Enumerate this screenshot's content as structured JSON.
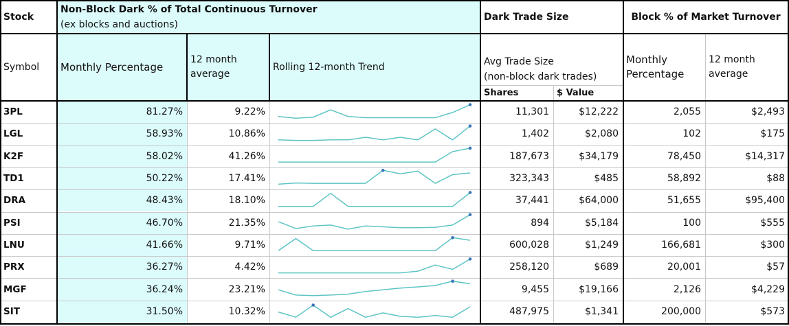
{
  "header": {
    "stock": "Stock",
    "dark_group_line1": "Non-Block Dark % of Total Continuous Turnover",
    "dark_group_line2": "(ex blocks and auctions)",
    "trade_size_group": "Dark Trade Size",
    "block_group": "Block % of Market Turnover",
    "symbol": "Symbol",
    "monthly_percentage": "Monthly Percentage",
    "avg12_line1": "12 month",
    "avg12_line2": "average",
    "rolling_trend": "Rolling 12-month Trend",
    "avg_trade_size_line1": "Avg Trade Size",
    "avg_trade_size_line2": "(non-block dark trades)",
    "shares": "Shares",
    "value": "$ Value",
    "block_monthly_line1": "Monthly",
    "block_monthly_line2": "Percentage",
    "block_avg_line1": "12 month",
    "block_avg_line2": "average"
  },
  "colors": {
    "accent_bg": "#dcfbfb",
    "trend_line": "#5ec4c4",
    "trend_marker": "#3b78b8"
  },
  "rows": [
    {
      "symbol": "3PL",
      "monthly": "81.27%",
      "avg12": "9.22%",
      "shares": "11,301",
      "value": "$12,222",
      "block_monthly": "2,055",
      "block_avg": "$2,493",
      "trend": [
        0.78,
        0.88,
        0.82,
        0.4,
        0.78,
        0.85,
        0.85,
        0.85,
        0.85,
        0.85,
        0.55,
        0.1
      ],
      "marker": 11
    },
    {
      "symbol": "LGL",
      "monthly": "58.93%",
      "avg12": "10.86%",
      "shares": "1,402",
      "value": "$2,080",
      "block_monthly": "102",
      "block_avg": "$175",
      "trend": [
        0.85,
        0.88,
        0.88,
        0.85,
        0.85,
        0.7,
        0.85,
        0.7,
        0.85,
        0.22,
        0.85,
        0.05
      ],
      "marker": 11
    },
    {
      "symbol": "K2F",
      "monthly": "58.02%",
      "avg12": "41.26%",
      "shares": "187,673",
      "value": "$34,179",
      "block_monthly": "78,450",
      "block_avg": "$14,317",
      "trend": [
        0.85,
        0.85,
        0.85,
        0.85,
        0.85,
        0.85,
        0.85,
        0.85,
        0.85,
        0.85,
        0.25,
        0.05
      ],
      "marker": 11
    },
    {
      "symbol": "TD1",
      "monthly": "50.22%",
      "avg12": "17.41%",
      "shares": "323,343",
      "value": "$485",
      "block_monthly": "58,892",
      "block_avg": "$88",
      "trend": [
        0.85,
        0.78,
        0.8,
        0.8,
        0.8,
        0.8,
        0.05,
        0.25,
        0.1,
        0.8,
        0.3,
        0.2
      ],
      "marker": 6
    },
    {
      "symbol": "DRA",
      "monthly": "48.43%",
      "avg12": "18.10%",
      "shares": "37,441",
      "value": "$64,000",
      "block_monthly": "51,655",
      "block_avg": "$95,400",
      "trend": [
        0.85,
        0.85,
        0.85,
        0.1,
        0.85,
        0.85,
        0.85,
        0.85,
        0.85,
        0.85,
        0.85,
        0.05
      ],
      "marker": 11
    },
    {
      "symbol": "PSI",
      "monthly": "46.70%",
      "avg12": "21.35%",
      "shares": "894",
      "value": "$5,184",
      "block_monthly": "100",
      "block_avg": "$555",
      "trend": [
        0.45,
        0.85,
        0.7,
        0.65,
        0.88,
        0.7,
        0.75,
        0.8,
        0.8,
        0.78,
        0.65,
        0.05
      ],
      "marker": 11
    },
    {
      "symbol": "LNU",
      "monthly": "41.66%",
      "avg12": "9.71%",
      "shares": "600,028",
      "value": "$1,249",
      "block_monthly": "166,681",
      "block_avg": "$300",
      "trend": [
        0.85,
        0.15,
        0.85,
        0.85,
        0.85,
        0.85,
        0.85,
        0.85,
        0.85,
        0.85,
        0.1,
        0.25
      ],
      "marker": 10
    },
    {
      "symbol": "PRX",
      "monthly": "36.27%",
      "avg12": "4.42%",
      "shares": "258,120",
      "value": "$689",
      "block_monthly": "20,001",
      "block_avg": "$57",
      "trend": [
        0.85,
        0.85,
        0.85,
        0.85,
        0.85,
        0.85,
        0.85,
        0.85,
        0.75,
        0.4,
        0.65,
        0.05
      ],
      "marker": 11
    },
    {
      "symbol": "MGF",
      "monthly": "36.24%",
      "avg12": "23.21%",
      "shares": "9,455",
      "value": "$19,166",
      "block_monthly": "2,126",
      "block_avg": "$4,229",
      "trend": [
        0.55,
        0.85,
        0.88,
        0.85,
        0.8,
        0.65,
        0.55,
        0.45,
        0.38,
        0.3,
        0.05,
        0.2
      ],
      "marker": 10
    },
    {
      "symbol": "SIT",
      "monthly": "31.50%",
      "avg12": "10.32%",
      "shares": "487,975",
      "value": "$1,341",
      "block_monthly": "200,000",
      "block_avg": "$573",
      "trend": [
        0.55,
        0.85,
        0.15,
        0.85,
        0.35,
        0.85,
        0.6,
        0.8,
        0.85,
        0.75,
        0.85,
        0.25
      ],
      "marker": 2
    }
  ]
}
